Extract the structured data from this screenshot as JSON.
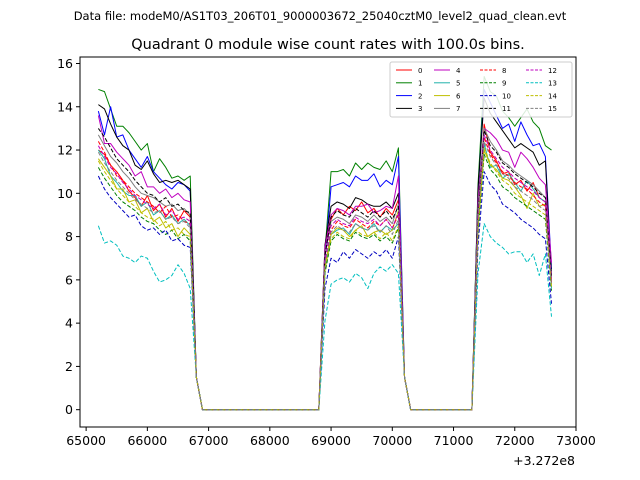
{
  "header": {
    "file_label": "Data file: modeM0/AS1T03_206T01_9000003672_25040cztM0_level2_quad_clean.evt"
  },
  "chart_data": {
    "type": "line",
    "title": "Quadrant 0 module wise count rates with 100.0s bins.",
    "xlabel": "",
    "ylabel": "",
    "x_offset_label": "+3.272e8",
    "xlim": [
      64900,
      73000
    ],
    "ylim": [
      -0.8,
      16.3
    ],
    "xticks": [
      65000,
      66000,
      67000,
      68000,
      69000,
      70000,
      71000,
      72000,
      73000
    ],
    "xtick_labels": [
      "65000",
      "66000",
      "67000",
      "68000",
      "69000",
      "70000",
      "71000",
      "72000",
      "73000"
    ],
    "yticks": [
      0,
      2,
      4,
      6,
      8,
      10,
      12,
      14,
      16
    ],
    "ytick_labels": [
      "0",
      "2",
      "4",
      "6",
      "8",
      "10",
      "12",
      "14",
      "16"
    ],
    "grid": false,
    "legend_position": "top-right",
    "segments": [
      {
        "start": 65200,
        "step": 100,
        "count": 16
      },
      {
        "start": 68900,
        "step": 100,
        "count": 13
      },
      {
        "start": 71300,
        "step": 100,
        "count": 14
      }
    ],
    "gap_points": [
      [
        66800,
        1.5
      ],
      [
        66900,
        0.0
      ],
      [
        68800,
        0.0
      ],
      [
        70200,
        1.5
      ],
      [
        70300,
        0.0
      ],
      [
        71200,
        0.0
      ]
    ],
    "series": [
      {
        "name": "0",
        "color": "#ff0000",
        "dash": "solid",
        "segments": [
          [
            12.0,
            11.8,
            11.3,
            11.0,
            10.6,
            10.1,
            9.8,
            9.4,
            9.9,
            9.2,
            9.5,
            8.9,
            9.3,
            8.7,
            9.2,
            8.9
          ],
          [
            7.4,
            8.8,
            9.3,
            9.0,
            9.4,
            9.2,
            9.6,
            9.1,
            9.3,
            8.9,
            9.3,
            9.0,
            9.7
          ],
          [
            0.0,
            8.9,
            13.2,
            11.9,
            11.5,
            10.9,
            11.0,
            10.4,
            10.6,
            10.1,
            10.5,
            9.8,
            9.6,
            6.0
          ]
        ]
      },
      {
        "name": "1",
        "color": "#008000",
        "dash": "solid",
        "segments": [
          [
            14.8,
            14.7,
            13.9,
            13.1,
            13.1,
            12.8,
            12.4,
            12.0,
            12.3,
            11.0,
            11.6,
            11.2,
            10.7,
            10.8,
            10.6,
            10.8
          ],
          [
            7.3,
            11.0,
            11.0,
            11.1,
            10.8,
            11.4,
            11.1,
            11.4,
            11.2,
            11.1,
            11.5,
            11.0,
            12.1
          ],
          [
            0.0,
            10.4,
            15.4,
            14.7,
            14.5,
            13.8,
            13.5,
            13.1,
            13.5,
            13.9,
            13.3,
            13.0,
            12.2,
            12.0
          ]
        ]
      },
      {
        "name": "2",
        "color": "#0000ff",
        "dash": "solid",
        "segments": [
          [
            13.8,
            12.7,
            14.0,
            12.6,
            12.7,
            12.0,
            11.6,
            11.2,
            11.7,
            11.0,
            10.7,
            10.4,
            10.2,
            10.5,
            10.4,
            10.1
          ],
          [
            7.0,
            10.3,
            10.4,
            10.5,
            10.3,
            10.8,
            10.6,
            10.6,
            10.9,
            10.3,
            10.6,
            10.4,
            11.7
          ],
          [
            0.0,
            10.0,
            14.8,
            14.2,
            13.6,
            13.0,
            13.2,
            12.4,
            13.3,
            12.7,
            12.2,
            12.3,
            11.7,
            6.5
          ]
        ]
      },
      {
        "name": "3",
        "color": "#000000",
        "dash": "solid",
        "segments": [
          [
            14.1,
            13.9,
            13.2,
            12.6,
            12.2,
            12.0,
            11.3,
            11.1,
            11.5,
            10.9,
            10.5,
            10.6,
            10.5,
            10.6,
            10.4,
            10.2
          ],
          [
            7.6,
            9.4,
            9.6,
            9.5,
            9.3,
            9.8,
            9.7,
            9.5,
            9.4,
            9.4,
            9.6,
            9.3,
            10.0
          ],
          [
            0.0,
            10.2,
            14.4,
            13.7,
            13.3,
            12.9,
            12.5,
            12.1,
            12.3,
            12.1,
            11.9,
            11.3,
            11.5,
            6.2
          ]
        ]
      },
      {
        "name": "4",
        "color": "#bf00bf",
        "dash": "solid",
        "segments": [
          [
            13.6,
            12.3,
            12.3,
            11.9,
            11.6,
            11.3,
            10.8,
            11.0,
            10.3,
            10.3,
            10.0,
            10.2,
            9.8,
            10.0,
            9.7,
            9.6
          ],
          [
            7.5,
            9.0,
            9.3,
            9.2,
            9.0,
            9.4,
            9.4,
            9.5,
            9.1,
            9.2,
            9.4,
            9.3,
            10.8
          ],
          [
            0.0,
            9.7,
            13.0,
            12.8,
            12.5,
            12.0,
            11.9,
            11.2,
            11.9,
            11.6,
            11.2,
            10.7,
            10.4,
            6.8
          ]
        ]
      },
      {
        "name": "5",
        "color": "#20b2aa",
        "dash": "solid",
        "segments": [
          [
            12.0,
            11.6,
            10.8,
            10.5,
            10.1,
            9.9,
            9.9,
            9.4,
            9.6,
            9.0,
            9.2,
            8.8,
            9.0,
            8.6,
            8.8,
            8.5
          ],
          [
            6.4,
            8.1,
            8.3,
            8.4,
            8.1,
            8.6,
            8.4,
            8.3,
            8.6,
            8.2,
            8.5,
            8.3,
            8.6
          ],
          [
            0.0,
            8.6,
            12.3,
            11.2,
            11.3,
            10.7,
            10.9,
            10.5,
            10.1,
            10.6,
            10.2,
            9.8,
            9.6,
            5.6
          ]
        ]
      },
      {
        "name": "6",
        "color": "#bfbf00",
        "dash": "solid",
        "segments": [
          [
            11.6,
            11.2,
            10.8,
            10.2,
            10.2,
            9.6,
            9.7,
            9.1,
            9.3,
            8.7,
            8.9,
            8.4,
            8.6,
            8.0,
            8.4,
            8.1
          ],
          [
            6.6,
            8.1,
            8.4,
            8.3,
            8.0,
            8.3,
            8.5,
            8.0,
            8.2,
            8.3,
            8.1,
            8.3,
            9.2
          ],
          [
            0.0,
            8.3,
            12.0,
            11.3,
            11.1,
            10.7,
            10.6,
            10.3,
            9.9,
            9.3,
            10.0,
            9.4,
            9.5,
            5.8
          ]
        ]
      },
      {
        "name": "7",
        "color": "#808080",
        "dash": "solid",
        "segments": [
          [
            12.7,
            12.2,
            11.7,
            11.4,
            11.0,
            10.7,
            10.3,
            10.0,
            9.9,
            9.8,
            9.6,
            9.4,
            9.5,
            9.2,
            9.3,
            9.0
          ],
          [
            7.2,
            8.7,
            8.9,
            8.8,
            8.6,
            9.0,
            8.9,
            8.7,
            9.0,
            8.7,
            8.9,
            8.6,
            9.5
          ],
          [
            0.0,
            9.3,
            13.0,
            12.4,
            12.0,
            11.5,
            11.3,
            11.0,
            10.8,
            10.6,
            10.4,
            10.1,
            9.8,
            6.1
          ]
        ]
      },
      {
        "name": "8",
        "color": "#ff0000",
        "dash": "dashed",
        "segments": [
          [
            12.4,
            11.9,
            11.3,
            10.8,
            10.6,
            10.3,
            10.0,
            9.8,
            9.6,
            9.4,
            9.1,
            9.4,
            8.9,
            9.0,
            8.7,
            8.6
          ],
          [
            6.8,
            8.3,
            8.7,
            8.5,
            8.4,
            8.8,
            8.6,
            8.4,
            8.7,
            8.5,
            8.8,
            8.4,
            9.0
          ],
          [
            0.0,
            8.7,
            12.6,
            11.8,
            11.4,
            11.0,
            10.8,
            10.5,
            10.3,
            10.2,
            9.9,
            9.6,
            9.4,
            5.9
          ]
        ]
      },
      {
        "name": "9",
        "color": "#008000",
        "dash": "dashed",
        "segments": [
          [
            11.2,
            10.7,
            10.3,
            9.9,
            9.6,
            9.4,
            9.2,
            8.9,
            8.7,
            8.6,
            8.3,
            8.1,
            8.3,
            7.9,
            8.1,
            7.8
          ],
          [
            6.3,
            7.8,
            8.1,
            7.9,
            7.8,
            8.2,
            8.0,
            7.9,
            8.1,
            7.8,
            8.0,
            7.7,
            8.4
          ],
          [
            0.0,
            8.2,
            11.8,
            11.1,
            10.8,
            10.3,
            10.1,
            9.8,
            9.6,
            9.4,
            9.2,
            9.0,
            8.8,
            5.5
          ]
        ]
      },
      {
        "name": "10",
        "color": "#0000bf",
        "dash": "dashed",
        "segments": [
          [
            10.8,
            10.2,
            9.8,
            9.5,
            9.2,
            8.9,
            9.0,
            8.5,
            8.3,
            8.4,
            8.1,
            8.3,
            7.8,
            7.9,
            7.6,
            7.5
          ],
          [
            5.6,
            7.0,
            6.8,
            7.3,
            7.0,
            7.4,
            7.2,
            7.0,
            7.3,
            7.1,
            7.4,
            7.0,
            8.0
          ],
          [
            0.0,
            7.6,
            11.0,
            10.4,
            10.1,
            9.5,
            9.3,
            9.1,
            8.8,
            8.6,
            8.4,
            8.1,
            7.9,
            4.9
          ]
        ]
      },
      {
        "name": "11",
        "color": "#000000",
        "dash": "dashed",
        "segments": [
          [
            13.0,
            12.6,
            12.1,
            11.6,
            11.3,
            11.0,
            10.6,
            10.3,
            10.0,
            9.9,
            9.6,
            9.8,
            9.4,
            9.5,
            9.2,
            9.1
          ],
          [
            7.1,
            8.9,
            9.2,
            9.0,
            8.9,
            9.3,
            9.1,
            8.9,
            9.2,
            8.9,
            9.2,
            8.8,
            9.4
          ],
          [
            0.0,
            9.1,
            12.9,
            12.2,
            11.9,
            11.4,
            11.2,
            10.9,
            10.7,
            10.5,
            10.3,
            10.0,
            9.8,
            6.2
          ]
        ]
      },
      {
        "name": "12",
        "color": "#bf00bf",
        "dash": "dashed",
        "segments": [
          [
            12.2,
            11.7,
            11.2,
            10.9,
            10.5,
            10.2,
            9.9,
            9.7,
            9.5,
            9.3,
            9.5,
            9.0,
            9.2,
            8.8,
            8.9,
            8.7
          ],
          [
            6.9,
            8.5,
            8.8,
            8.6,
            8.5,
            8.9,
            8.7,
            8.6,
            8.8,
            8.5,
            8.8,
            8.4,
            9.1
          ],
          [
            0.0,
            8.9,
            12.7,
            12.0,
            11.6,
            11.2,
            11.0,
            10.7,
            10.5,
            10.3,
            10.1,
            9.8,
            9.6,
            6.0
          ]
        ]
      },
      {
        "name": "13",
        "color": "#00bfbf",
        "dash": "dashed",
        "segments": [
          [
            8.5,
            7.7,
            7.8,
            7.6,
            7.1,
            7.0,
            6.8,
            7.1,
            7.0,
            6.4,
            5.9,
            6.0,
            6.2,
            6.7,
            6.3,
            5.6
          ],
          [
            4.1,
            5.8,
            6.0,
            6.1,
            5.9,
            6.3,
            6.1,
            5.6,
            6.3,
            6.6,
            6.4,
            6.7,
            6.3
          ],
          [
            0.0,
            6.3,
            8.6,
            8.0,
            7.7,
            7.5,
            7.2,
            7.3,
            7.3,
            6.8,
            7.2,
            6.2,
            7.2,
            4.3
          ]
        ]
      },
      {
        "name": "14",
        "color": "#bfbf00",
        "dash": "dashed",
        "segments": [
          [
            11.5,
            11.0,
            10.6,
            10.2,
            9.9,
            9.6,
            9.4,
            9.1,
            8.9,
            8.8,
            8.5,
            8.7,
            8.3,
            8.4,
            8.1,
            8.0
          ],
          [
            6.5,
            7.9,
            8.2,
            8.0,
            7.9,
            8.3,
            8.1,
            8.0,
            8.2,
            7.9,
            8.2,
            7.8,
            8.5
          ],
          [
            0.0,
            8.4,
            12.1,
            11.4,
            11.0,
            10.6,
            10.4,
            10.0,
            9.8,
            9.6,
            9.4,
            9.2,
            9.0,
            5.7
          ]
        ]
      },
      {
        "name": "15",
        "color": "#808080",
        "dash": "dashed",
        "segments": [
          [
            11.9,
            11.4,
            11.0,
            10.6,
            10.3,
            10.0,
            9.7,
            9.5,
            9.3,
            9.1,
            9.2,
            8.8,
            8.9,
            8.6,
            8.7,
            8.4
          ],
          [
            6.7,
            8.2,
            8.5,
            8.3,
            8.2,
            8.6,
            8.4,
            8.3,
            8.5,
            8.2,
            8.5,
            8.1,
            8.8
          ],
          [
            0.0,
            8.8,
            12.4,
            11.7,
            11.3,
            10.9,
            10.7,
            10.3,
            10.1,
            9.9,
            9.7,
            9.4,
            9.2,
            5.8
          ]
        ]
      }
    ]
  }
}
